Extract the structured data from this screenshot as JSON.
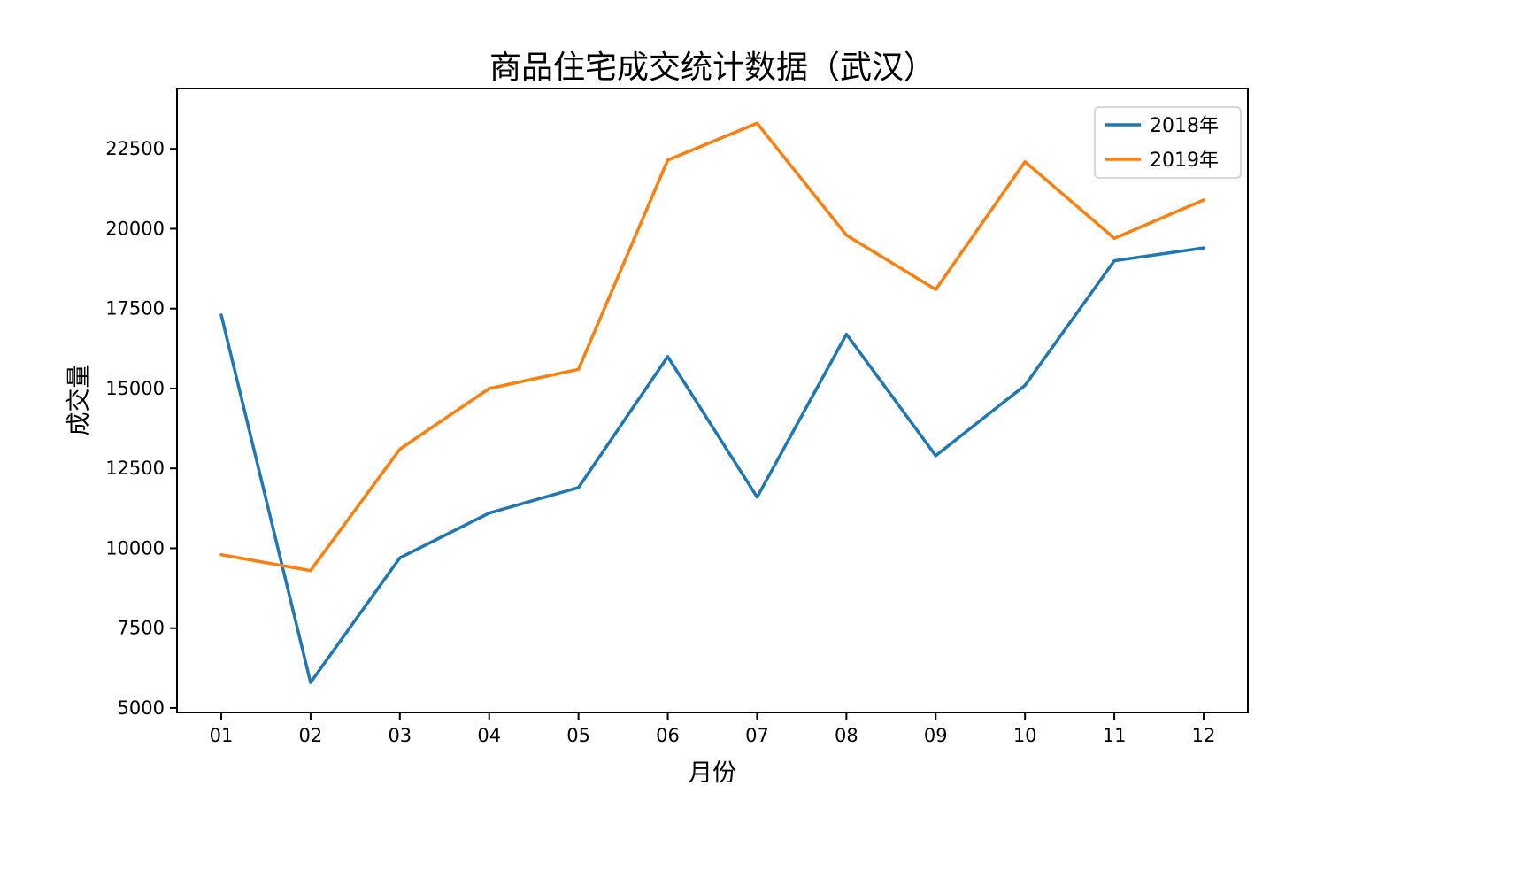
{
  "title": "商品住宅成交统计数据（武汉）",
  "chart_data": {
    "type": "line",
    "title": "商品住宅成交统计数据（武汉）",
    "xlabel": "月份",
    "ylabel": "成交量",
    "categories": [
      "01",
      "02",
      "03",
      "04",
      "05",
      "06",
      "07",
      "08",
      "09",
      "10",
      "11",
      "12"
    ],
    "series": [
      {
        "name": "2018年",
        "color": "#1f77b4",
        "values": [
          17300,
          5800,
          9700,
          11100,
          11900,
          16000,
          11600,
          16700,
          12900,
          15100,
          19000,
          19400
        ]
      },
      {
        "name": "2019年",
        "color": "#ff7f0e",
        "values": [
          9800,
          9300,
          13100,
          15000,
          15600,
          22150,
          23300,
          19800,
          18100,
          22100,
          19700,
          20900
        ]
      }
    ],
    "ylim": [
      4860,
      24390
    ],
    "yticks": [
      5000,
      7500,
      10000,
      12500,
      15000,
      17500,
      20000,
      22500
    ],
    "grid": false,
    "legend_position": "upper right",
    "axis_color": "#000000",
    "legend_edge_color": "#cccccc"
  }
}
